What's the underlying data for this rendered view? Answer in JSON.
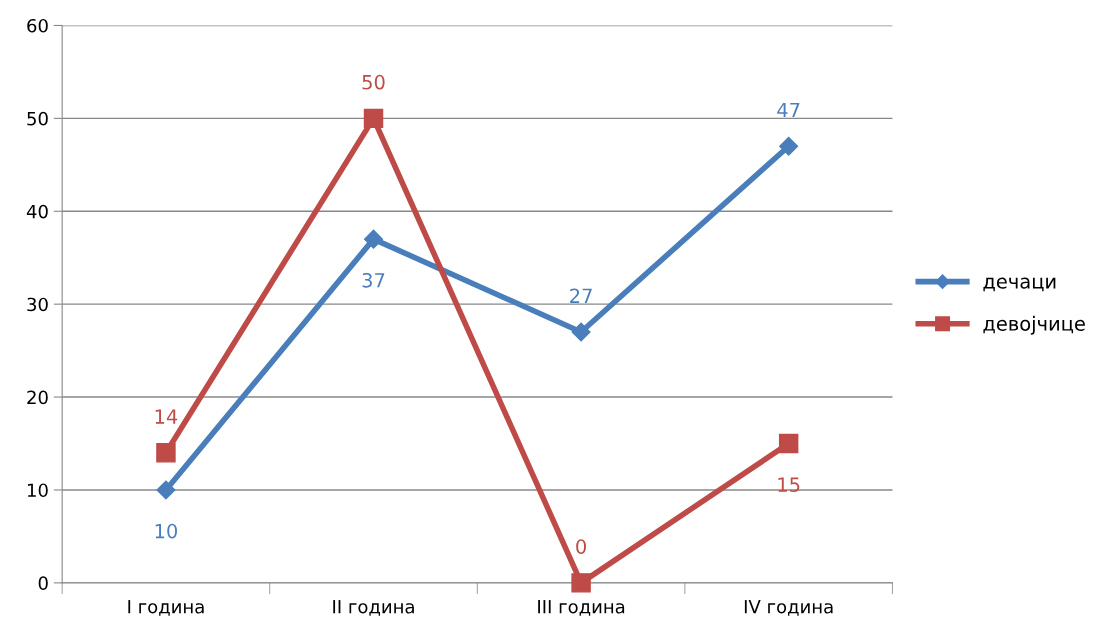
{
  "chart_data": {
    "type": "line",
    "categories": [
      "I година",
      "II година",
      "III година",
      "IV година"
    ],
    "series": [
      {
        "name": "дечаци",
        "color": "#4a7ebb",
        "values": [
          10,
          37,
          27,
          47
        ],
        "marker": "diamond"
      },
      {
        "name": "девојчице",
        "color": "#be4b48",
        "values": [
          14,
          50,
          0,
          15
        ],
        "marker": "square"
      }
    ],
    "ylim": [
      0,
      60
    ],
    "yticks": [
      0,
      10,
      20,
      30,
      40,
      50,
      60
    ],
    "grid": "y",
    "legend": "right",
    "data_labels": true,
    "line_style": "solid"
  }
}
